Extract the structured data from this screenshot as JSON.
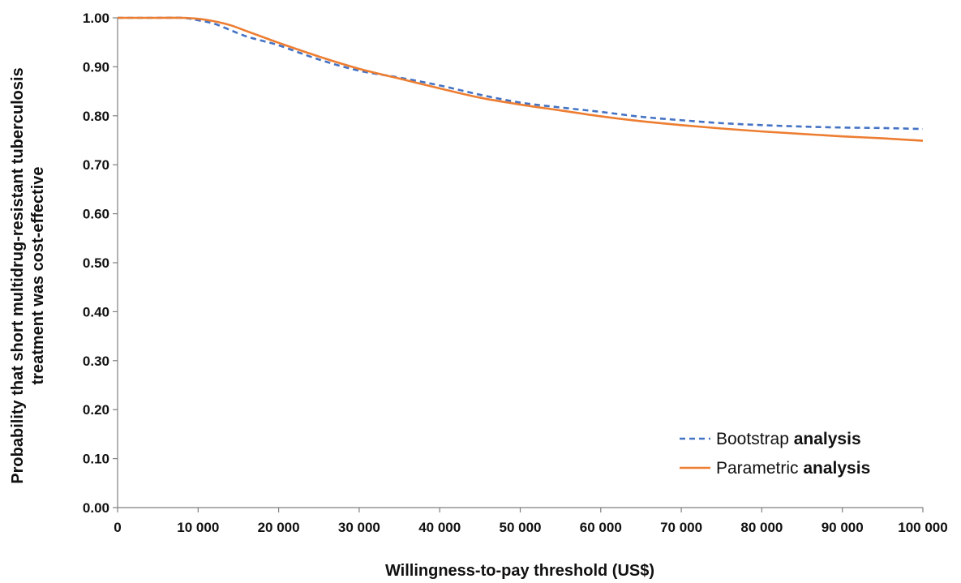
{
  "chart_data": {
    "type": "line",
    "xlabel": "Willingness-to-pay threshold (US$)",
    "ylabel_line1": "Probability that short multidrug-resistant tuberculosis",
    "ylabel_line2": "treatment  was cost-effective",
    "xlim": [
      0,
      100000
    ],
    "ylim": [
      0,
      1
    ],
    "x_ticks": [
      0,
      10000,
      20000,
      30000,
      40000,
      50000,
      60000,
      70000,
      80000,
      90000,
      100000
    ],
    "x_tick_labels": [
      "0",
      "10 000",
      "20 000",
      "30 000",
      "40 000",
      "50 000",
      "60 000",
      "70 000",
      "80 000",
      "90 000",
      "100 000"
    ],
    "y_ticks": [
      0,
      0.1,
      0.2,
      0.3,
      0.4,
      0.5,
      0.6,
      0.7,
      0.8,
      0.9,
      1.0
    ],
    "y_tick_labels": [
      "0.00",
      "0.10",
      "0.20",
      "0.30",
      "0.40",
      "0.50",
      "0.60",
      "0.70",
      "0.80",
      "0.90",
      "1.00"
    ],
    "grid": false,
    "legend_position": "bottom-right",
    "series": [
      {
        "name_regular": "Bootstrap ",
        "name_bold": "analysis",
        "color": "#4472C4",
        "style": "dashed",
        "x": [
          0,
          5000,
          8000,
          10000,
          12000,
          14000,
          16000,
          18000,
          20000,
          25000,
          30000,
          35000,
          40000,
          45000,
          50000,
          55000,
          60000,
          65000,
          70000,
          75000,
          80000,
          85000,
          90000,
          95000,
          100000
        ],
        "y": [
          1.0,
          1.0,
          1.0,
          0.995,
          0.988,
          0.975,
          0.962,
          0.953,
          0.944,
          0.915,
          0.892,
          0.878,
          0.862,
          0.843,
          0.827,
          0.817,
          0.808,
          0.798,
          0.791,
          0.785,
          0.781,
          0.778,
          0.776,
          0.775,
          0.773
        ]
      },
      {
        "name_regular": "Parametric ",
        "name_bold": "analysis",
        "color": "#ED7D31",
        "style": "solid",
        "x": [
          0,
          5000,
          8000,
          10000,
          12000,
          14000,
          16000,
          18000,
          20000,
          25000,
          30000,
          35000,
          40000,
          45000,
          50000,
          55000,
          60000,
          65000,
          70000,
          75000,
          80000,
          85000,
          90000,
          95000,
          100000
        ],
        "y": [
          1.0,
          1.0,
          1.0,
          0.998,
          0.993,
          0.985,
          0.973,
          0.961,
          0.949,
          0.921,
          0.896,
          0.876,
          0.856,
          0.837,
          0.823,
          0.811,
          0.799,
          0.789,
          0.781,
          0.774,
          0.768,
          0.763,
          0.758,
          0.754,
          0.749
        ]
      }
    ]
  }
}
